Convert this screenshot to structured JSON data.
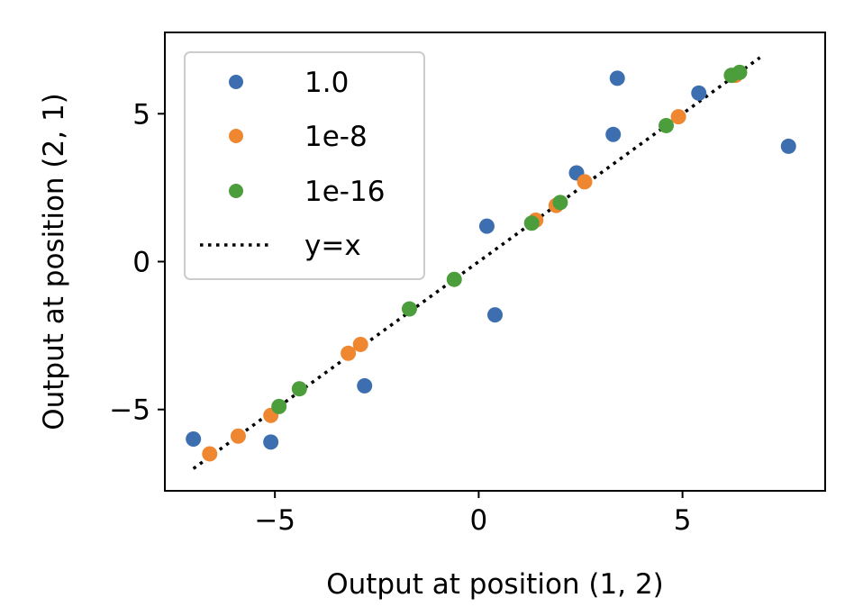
{
  "chart_data": {
    "type": "scatter",
    "title": "",
    "xlabel": "Output at position (1, 2)",
    "ylabel": "Output at position (2, 1)",
    "xlim": [
      -7.7,
      8.5
    ],
    "ylim": [
      -7.75,
      7.75
    ],
    "x_ticks": [
      {
        "value": -5,
        "label": "−5"
      },
      {
        "value": 0,
        "label": "0"
      },
      {
        "value": 5,
        "label": "5"
      }
    ],
    "y_ticks": [
      {
        "value": -5,
        "label": "−5"
      },
      {
        "value": 0,
        "label": "0"
      },
      {
        "value": 5,
        "label": "5"
      }
    ],
    "grid": false,
    "legend_position": "upper-left",
    "series": [
      {
        "name": "1.0",
        "color": "#3d6fb0",
        "marker": "circle",
        "points": [
          {
            "x": -7.0,
            "y": -6.0
          },
          {
            "x": -5.1,
            "y": -6.1
          },
          {
            "x": -2.8,
            "y": -4.2
          },
          {
            "x": 0.2,
            "y": 1.2
          },
          {
            "x": 0.4,
            "y": -1.8
          },
          {
            "x": 2.4,
            "y": 3.0
          },
          {
            "x": 3.3,
            "y": 4.3
          },
          {
            "x": 3.4,
            "y": 6.2
          },
          {
            "x": 5.4,
            "y": 5.7
          },
          {
            "x": 7.6,
            "y": 3.9
          }
        ]
      },
      {
        "name": "1e-8",
        "color": "#ef8731",
        "marker": "circle",
        "points": [
          {
            "x": -6.6,
            "y": -6.5
          },
          {
            "x": -5.9,
            "y": -5.9
          },
          {
            "x": -5.1,
            "y": -5.2
          },
          {
            "x": -3.2,
            "y": -3.1
          },
          {
            "x": -2.9,
            "y": -2.8
          },
          {
            "x": 1.4,
            "y": 1.4
          },
          {
            "x": 1.9,
            "y": 1.9
          },
          {
            "x": 2.6,
            "y": 2.7
          },
          {
            "x": 4.9,
            "y": 4.9
          },
          {
            "x": 6.3,
            "y": 6.3
          }
        ]
      },
      {
        "name": "1e-16",
        "color": "#4c9d3b",
        "marker": "circle",
        "points": [
          {
            "x": -4.9,
            "y": -4.9
          },
          {
            "x": -4.4,
            "y": -4.3
          },
          {
            "x": -1.7,
            "y": -1.6
          },
          {
            "x": -0.6,
            "y": -0.6
          },
          {
            "x": 1.3,
            "y": 1.3
          },
          {
            "x": 2.0,
            "y": 2.0
          },
          {
            "x": 4.6,
            "y": 4.6
          },
          {
            "x": 6.2,
            "y": 6.3
          },
          {
            "x": 6.4,
            "y": 6.4
          }
        ]
      }
    ],
    "reference_line": {
      "name": "y=x",
      "style": "dotted",
      "color": "#000000",
      "from": [
        -7.0,
        -7.0
      ],
      "to": [
        6.9,
        6.9
      ]
    }
  }
}
